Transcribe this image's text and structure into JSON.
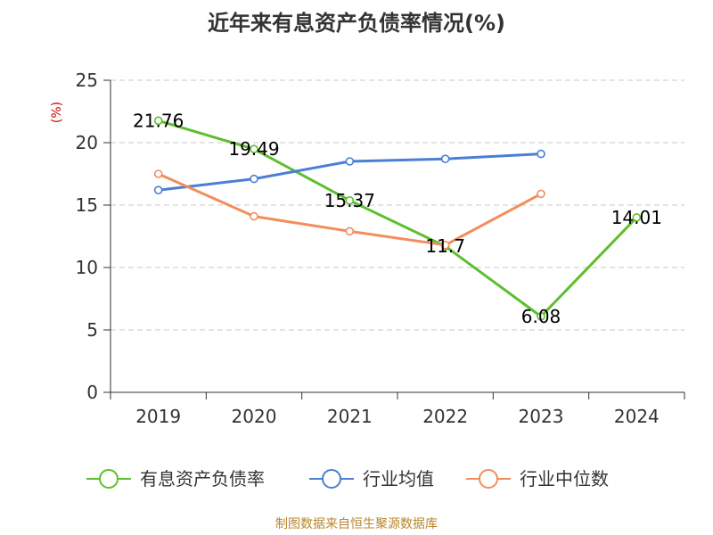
{
  "chart_data": {
    "type": "line",
    "title": "近年来有息资产负债率情况(%)",
    "ylabel": "(%)",
    "xlabel": "",
    "categories": [
      "2019",
      "2020",
      "2021",
      "2022",
      "2023",
      "2024"
    ],
    "ylim": [
      0,
      25
    ],
    "yticks": [
      0,
      5,
      10,
      15,
      20,
      25
    ],
    "grid": true,
    "legend_position": "bottom",
    "series": [
      {
        "name": "有息资产负债率",
        "color": "#5dbf2e",
        "values": [
          21.76,
          19.49,
          15.37,
          11.7,
          6.08,
          14.01
        ],
        "data_labels": [
          "21.76",
          "19.49",
          "15.37",
          "11.7",
          "6.08",
          "14.01"
        ]
      },
      {
        "name": "行业均值",
        "color": "#4a7fd4",
        "values": [
          16.2,
          17.1,
          18.5,
          18.7,
          19.1,
          null
        ]
      },
      {
        "name": "行业中位数",
        "color": "#f38d5b",
        "values": [
          17.5,
          14.1,
          12.9,
          11.8,
          15.9,
          null
        ]
      }
    ],
    "source": "制图数据来自恒生聚源数据库"
  }
}
